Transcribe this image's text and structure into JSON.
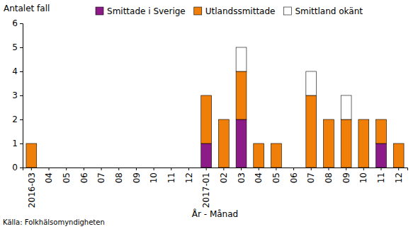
{
  "chart_data": {
    "type": "bar",
    "stacked": true,
    "legend": "top",
    "grid": false,
    "y_label": "Antalet fall",
    "x_label": "År - Månad",
    "source": "Källa: Folkhälsomyndigheten",
    "categories": [
      "2016-03",
      "04",
      "05",
      "06",
      "07",
      "08",
      "09",
      "10",
      "11",
      "12",
      "2017-01",
      "02",
      "03",
      "04",
      "05",
      "06",
      "07",
      "08",
      "09",
      "10",
      "11",
      "12"
    ],
    "series": [
      {
        "name": "Smittade i Sverige",
        "color": "#8d1b87",
        "values": [
          0,
          0,
          0,
          0,
          0,
          0,
          0,
          0,
          0,
          0,
          1,
          0,
          2,
          0,
          0,
          0,
          0,
          0,
          0,
          0,
          1,
          0
        ]
      },
      {
        "name": "Utlandssmittade",
        "color": "#f07f09",
        "values": [
          1,
          0,
          0,
          0,
          0,
          0,
          0,
          0,
          0,
          0,
          2,
          2,
          2,
          1,
          1,
          0,
          3,
          2,
          2,
          2,
          1,
          1
        ]
      },
      {
        "name": "Smittland okänt",
        "color": "#ffffff",
        "values": [
          0,
          0,
          0,
          0,
          0,
          0,
          0,
          0,
          0,
          0,
          0,
          0,
          1,
          0,
          0,
          0,
          1,
          0,
          1,
          0,
          0,
          0
        ]
      }
    ],
    "ylim": [
      0,
      6
    ],
    "yticks": [
      0,
      1,
      2,
      3,
      4,
      5,
      6
    ]
  }
}
